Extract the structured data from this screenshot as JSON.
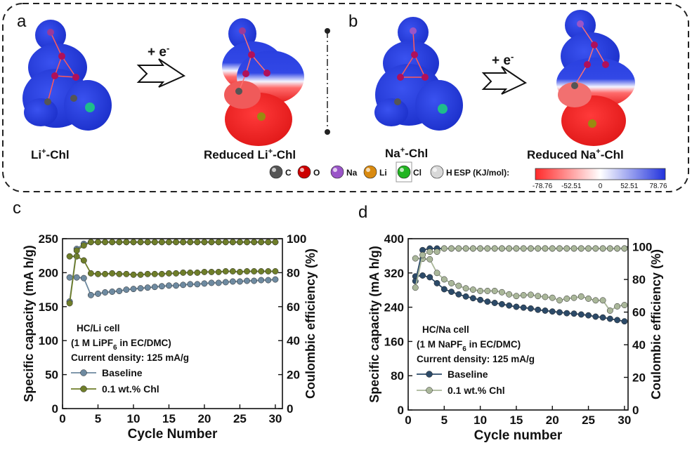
{
  "panel_a": {
    "label": "a",
    "plus_e": "+ e",
    "sup_minus": "-",
    "left_name": "Li",
    "left_name_rest": "-Chl",
    "right_name_pre": "Reduced Li",
    "right_name_rest": "-Chl",
    "sup_plus": "+"
  },
  "panel_b": {
    "label": "b",
    "plus_e": "+ e",
    "sup_minus": "-",
    "left_name": "Na",
    "left_name_rest": "-Chl",
    "right_name_pre": "Reduced Na",
    "right_name_rest": "-Chl",
    "sup_plus": "+"
  },
  "atom_legend": [
    {
      "label": "C",
      "color": "#555555"
    },
    {
      "label": "O",
      "color": "#cc0000"
    },
    {
      "label": "Na",
      "color": "#9a55c8"
    },
    {
      "label": "Li",
      "color": "#d98a10"
    },
    {
      "label": "Cl",
      "color": "#22b422"
    },
    {
      "label": "H",
      "color": "#d8d8d8"
    }
  ],
  "esp_bar": {
    "title": "ESP (KJ/mol):",
    "ticks": [
      "-78.76",
      "-52.51",
      "0",
      "52.51",
      "78.76"
    ],
    "colors": {
      "negative": "#ff2a2a",
      "zero": "#ffffff",
      "positive": "#2233dd"
    }
  },
  "colors": {
    "baseline_li": "#6e8aa0",
    "chl_li": "#6f7e2a",
    "baseline_na": "#2c4a68",
    "chl_na": "#aab79a"
  },
  "chart_data": [
    {
      "type": "line",
      "panel": "c",
      "xlabel": "Cycle Number",
      "ylabel": "Specific capacity (mA h/g)",
      "y2label": "Coulombic efficiency (%)",
      "xlim": [
        0,
        31
      ],
      "ylim": [
        0,
        250
      ],
      "y2lim": [
        0,
        100
      ],
      "xticks": [
        0,
        5,
        10,
        15,
        20,
        25,
        30
      ],
      "yticks": [
        0,
        50,
        100,
        150,
        200,
        250
      ],
      "y2ticks": [
        0,
        20,
        40,
        60,
        80,
        100
      ],
      "annotation": [
        "HC/Li cell",
        "(1 M LiPF",
        "6",
        " in EC/DMC)",
        "Current density: 125 mA/g"
      ],
      "legend": [
        "Baseline",
        "0.1 wt.% Chl"
      ],
      "series": [
        {
          "name": "Baseline",
          "axis": "left",
          "x": [
            1,
            2,
            3,
            4,
            5,
            6,
            7,
            8,
            9,
            10,
            11,
            12,
            13,
            14,
            15,
            16,
            17,
            18,
            19,
            20,
            21,
            22,
            23,
            24,
            25,
            26,
            27,
            28,
            29,
            30
          ],
          "values": [
            193,
            193,
            192,
            167,
            169,
            171,
            172,
            173,
            175,
            176,
            177,
            178,
            179,
            180,
            181,
            181,
            182,
            183,
            183,
            184,
            185,
            185,
            186,
            187,
            187,
            188,
            188,
            189,
            189,
            190
          ]
        },
        {
          "name": "0.1 wt.% Chl",
          "axis": "left",
          "x": [
            1,
            2,
            3,
            4,
            5,
            6,
            7,
            8,
            9,
            10,
            11,
            12,
            13,
            14,
            15,
            16,
            17,
            18,
            19,
            20,
            21,
            22,
            23,
            24,
            25,
            26,
            27,
            28,
            29,
            30
          ],
          "values": [
            224,
            224,
            218,
            199,
            198,
            198,
            199,
            198,
            198,
            197,
            197,
            198,
            198,
            198,
            199,
            199,
            200,
            200,
            200,
            201,
            201,
            201,
            202,
            202,
            201,
            202,
            202,
            202,
            202,
            202
          ]
        },
        {
          "name": "Baseline CE",
          "axis": "right",
          "x": [
            1,
            2,
            3,
            4,
            5,
            6,
            7,
            8,
            9,
            10,
            11,
            12,
            13,
            14,
            15,
            16,
            17,
            18,
            19,
            20,
            21,
            22,
            23,
            24,
            25,
            26,
            27,
            28,
            29,
            30
          ],
          "values": [
            63,
            94,
            97,
            98,
            98,
            98,
            98,
            98,
            98,
            98,
            98,
            98,
            98,
            98,
            98,
            98,
            98,
            98,
            98,
            98,
            98,
            98,
            98,
            98,
            98,
            98,
            98,
            98,
            98,
            98
          ]
        },
        {
          "name": "0.1 wt.% Chl CE",
          "axis": "right",
          "x": [
            1,
            2,
            3,
            4,
            5,
            6,
            7,
            8,
            9,
            10,
            11,
            12,
            13,
            14,
            15,
            16,
            17,
            18,
            19,
            20,
            21,
            22,
            23,
            24,
            25,
            26,
            27,
            28,
            29,
            30
          ],
          "values": [
            62,
            93,
            96,
            98,
            98,
            98,
            98,
            98,
            98,
            98,
            98,
            98,
            98,
            98,
            98,
            98,
            98,
            98,
            98,
            98,
            98,
            98,
            98,
            98,
            98,
            98,
            98,
            98,
            98,
            98
          ]
        }
      ]
    },
    {
      "type": "line",
      "panel": "d",
      "xlabel": "Cycle number",
      "ylabel": "Specific capacity (mA h/g)",
      "y2label": "Coulombic efficiency (%)",
      "xlim": [
        0,
        30.5
      ],
      "ylim": [
        0,
        400
      ],
      "y2lim": [
        0,
        105
      ],
      "xticks": [
        0,
        5,
        10,
        15,
        20,
        25,
        30
      ],
      "yticks": [
        0,
        80,
        160,
        240,
        320,
        400
      ],
      "y2ticks": [
        0,
        20,
        40,
        60,
        80,
        100
      ],
      "annotation": [
        "HC/Na cell",
        "(1 M NaPF",
        "6",
        " in EC/DMC)",
        "Current density: 125 mA/g"
      ],
      "legend": [
        "Baseline",
        "0.1 wt.% Chl"
      ],
      "series": [
        {
          "name": "Baseline",
          "axis": "left",
          "x": [
            1,
            2,
            3,
            4,
            5,
            6,
            7,
            8,
            9,
            10,
            11,
            12,
            13,
            14,
            15,
            16,
            17,
            18,
            19,
            20,
            21,
            22,
            23,
            24,
            25,
            26,
            27,
            28,
            29,
            30
          ],
          "values": [
            312,
            314,
            310,
            296,
            282,
            276,
            270,
            265,
            261,
            257,
            253,
            250,
            247,
            244,
            241,
            239,
            237,
            234,
            232,
            230,
            228,
            226,
            225,
            223,
            221,
            218,
            216,
            213,
            210,
            207
          ]
        },
        {
          "name": "0.1 wt.% Chl",
          "axis": "left",
          "x": [
            1,
            2,
            3,
            4,
            5,
            6,
            7,
            8,
            9,
            10,
            11,
            12,
            13,
            14,
            15,
            16,
            17,
            18,
            19,
            20,
            21,
            22,
            23,
            24,
            25,
            26,
            27,
            28,
            29,
            30
          ],
          "values": [
            354,
            353,
            352,
            320,
            305,
            296,
            290,
            284,
            281,
            278,
            278,
            278,
            275,
            270,
            266,
            268,
            269,
            266,
            264,
            262,
            256,
            260,
            262,
            265,
            260,
            256,
            256,
            232,
            242,
            245
          ]
        },
        {
          "name": "Baseline CE",
          "axis": "right",
          "x": [
            1,
            2,
            3,
            4,
            5,
            6,
            7,
            8,
            9,
            10,
            11,
            12,
            13,
            14,
            15,
            16,
            17,
            18,
            19,
            20,
            21,
            22,
            23,
            24,
            25,
            26,
            27,
            28,
            29,
            30
          ],
          "values": [
            79,
            98,
            99,
            99,
            99,
            99,
            99,
            99,
            99,
            99,
            99,
            99,
            99,
            99,
            99,
            99,
            99,
            99,
            99,
            99,
            99,
            99,
            99,
            99,
            99,
            99,
            99,
            99,
            99,
            99
          ]
        },
        {
          "name": "0.1 wt.% Chl CE",
          "axis": "right",
          "x": [
            1,
            2,
            3,
            4,
            5,
            6,
            7,
            8,
            9,
            10,
            11,
            12,
            13,
            14,
            15,
            16,
            17,
            18,
            19,
            20,
            21,
            22,
            23,
            24,
            25,
            26,
            27,
            28,
            29,
            30
          ],
          "values": [
            75,
            95,
            97,
            97,
            99,
            99,
            99,
            99,
            99,
            99,
            99,
            99,
            99,
            99,
            99,
            99,
            99,
            99,
            99,
            99,
            99,
            99,
            99,
            99,
            99,
            99,
            99,
            99,
            99,
            99
          ]
        }
      ]
    }
  ]
}
